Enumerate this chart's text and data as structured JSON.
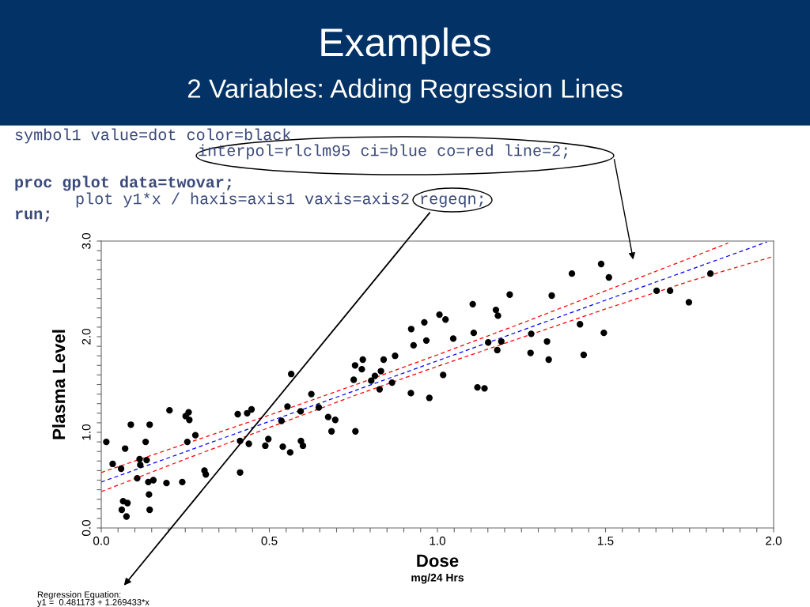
{
  "chart_data": {
    "type": "scatter",
    "title": "Examples",
    "subtitle": "2 Variables: Adding Regression Lines",
    "xlabel": "Dose",
    "ylabel": "Plasma Level",
    "annotations": [
      "symbol1 value=dot color=black",
      "interpol=rlclm95 ci=blue co=red line=2;",
      "proc gplot data=twovar;",
      "plot y1*x / haxis=axis1 vaxis=axis2 regeqn;",
      "run;",
      "mg/24 Hrs",
      "Regression Equation:\ny1 =  0.481173 + 1.269433*x"
    ],
    "xlim": [
      0,
      2
    ],
    "ylim": [
      0,
      3
    ],
    "xticks": [
      {
        "value": 0,
        "label": "0.0"
      },
      {
        "value": 0.05,
        "label": null
      },
      {
        "value": 0.1,
        "label": null
      },
      {
        "value": 0.15,
        "label": null
      },
      {
        "value": 0.2,
        "label": null
      },
      {
        "value": 0.25,
        "label": null
      },
      {
        "value": 0.3,
        "label": null
      },
      {
        "value": 0.35,
        "label": null
      },
      {
        "value": 0.4,
        "label": null
      },
      {
        "value": 0.45,
        "label": null
      },
      {
        "value": 0.5,
        "label": "0.5"
      },
      {
        "value": 0.55,
        "label": null
      },
      {
        "value": 0.6,
        "label": null
      },
      {
        "value": 0.65,
        "label": null
      },
      {
        "value": 0.7,
        "label": null
      },
      {
        "value": 0.75,
        "label": null
      },
      {
        "value": 0.8,
        "label": null
      },
      {
        "value": 0.85,
        "label": null
      },
      {
        "value": 0.9,
        "label": null
      },
      {
        "value": 0.95,
        "label": null
      },
      {
        "value": 1,
        "label": "1.0"
      },
      {
        "value": 1.05,
        "label": null
      },
      {
        "value": 1.1,
        "label": null
      },
      {
        "value": 1.15,
        "label": null
      },
      {
        "value": 1.2,
        "label": null
      },
      {
        "value": 1.25,
        "label": null
      },
      {
        "value": 1.3,
        "label": null
      },
      {
        "value": 1.35,
        "label": null
      },
      {
        "value": 1.4,
        "label": null
      },
      {
        "value": 1.45,
        "label": null
      },
      {
        "value": 1.5,
        "label": "1.5"
      },
      {
        "value": 1.55,
        "label": null
      },
      {
        "value": 1.6,
        "label": null
      },
      {
        "value": 1.65,
        "label": null
      },
      {
        "value": 1.7,
        "label": null
      },
      {
        "value": 1.75,
        "label": null
      },
      {
        "value": 1.8,
        "label": null
      },
      {
        "value": 1.85,
        "label": null
      },
      {
        "value": 1.9,
        "label": null
      },
      {
        "value": 1.95,
        "label": null
      },
      {
        "value": 2,
        "label": "2.0"
      }
    ],
    "yticks": [
      {
        "value": 0,
        "label": "0.0"
      },
      {
        "value": 0.1,
        "label": null
      },
      {
        "value": 0.2,
        "label": null
      },
      {
        "value": 0.3,
        "label": null
      },
      {
        "value": 0.4,
        "label": null
      },
      {
        "value": 0.5,
        "label": null
      },
      {
        "value": 0.6,
        "label": null
      },
      {
        "value": 0.7,
        "label": null
      },
      {
        "value": 0.8,
        "label": null
      },
      {
        "value": 0.9,
        "label": null
      },
      {
        "value": 1,
        "label": "1.0"
      },
      {
        "value": 1.1,
        "label": null
      },
      {
        "value": 1.2,
        "label": null
      },
      {
        "value": 1.3,
        "label": null
      },
      {
        "value": 1.4,
        "label": null
      },
      {
        "value": 1.5,
        "label": null
      },
      {
        "value": 1.6,
        "label": null
      },
      {
        "value": 1.7,
        "label": null
      },
      {
        "value": 1.8,
        "label": null
      },
      {
        "value": 1.9,
        "label": null
      },
      {
        "value": 2,
        "label": "2.0"
      },
      {
        "value": 2.1,
        "label": null
      },
      {
        "value": 2.2,
        "label": null
      },
      {
        "value": 2.3,
        "label": null
      },
      {
        "value": 2.4,
        "label": null
      },
      {
        "value": 2.5,
        "label": null
      },
      {
        "value": 2.6,
        "label": null
      },
      {
        "value": 2.7,
        "label": null
      },
      {
        "value": 2.8,
        "label": null
      },
      {
        "value": 2.9,
        "label": null
      },
      {
        "value": 3,
        "label": "3.0"
      }
    ],
    "grid": false,
    "legend": false,
    "series": [
      {
        "color": "#000000",
        "marker": "circle",
        "x": [
          0.015,
          0.034,
          0.059,
          0.071,
          0.061,
          0.065,
          0.078,
          0.075,
          0.088,
          0.107,
          0.114,
          0.116,
          0.132,
          0.135,
          0.14,
          0.155,
          0.142,
          0.144,
          0.144,
          0.194,
          0.203,
          0.241,
          0.251,
          0.26,
          0.262,
          0.256,
          0.28,
          0.307,
          0.311,
          0.406,
          0.413,
          0.413,
          0.434,
          0.439,
          0.447,
          0.488,
          0.497,
          0.54,
          0.536,
          0.554,
          0.562,
          0.565,
          0.593,
          0.594,
          0.6,
          0.625,
          0.647,
          0.675,
          0.685,
          0.696,
          0.751,
          0.755,
          0.756,
          0.775,
          0.778,
          0.803,
          0.814,
          0.828,
          0.832,
          0.84,
          0.865,
          0.874,
          0.921,
          0.922,
          0.929,
          0.961,
          0.967,
          0.976,
          1.006,
          1.017,
          1.024,
          1.047,
          1.105,
          1.108,
          1.119,
          1.14,
          1.151,
          1.174,
          1.18,
          1.178,
          1.19,
          1.215,
          1.277,
          1.279,
          1.326,
          1.331,
          1.34,
          1.4,
          1.424,
          1.435,
          1.487,
          1.495,
          1.51,
          1.652,
          1.692,
          1.748,
          1.812
        ],
        "values": [
          0.9,
          0.67,
          0.62,
          0.83,
          0.19,
          0.28,
          0.26,
          0.12,
          1.08,
          0.52,
          0.72,
          0.66,
          0.9,
          0.71,
          0.48,
          0.5,
          0.35,
          0.19,
          1.08,
          0.47,
          1.23,
          0.48,
          1.17,
          1.21,
          1.13,
          0.9,
          0.97,
          0.6,
          0.56,
          1.19,
          0.91,
          0.58,
          1.2,
          0.88,
          1.24,
          0.86,
          0.93,
          0.85,
          1.12,
          1.27,
          0.79,
          1.61,
          1.22,
          0.91,
          0.86,
          1.4,
          1.26,
          1.16,
          1.01,
          1.13,
          1.55,
          1.7,
          1.01,
          1.66,
          1.76,
          1.54,
          1.59,
          1.45,
          1.64,
          1.76,
          1.52,
          1.8,
          1.41,
          2.08,
          1.91,
          2.15,
          1.96,
          1.36,
          2.23,
          1.6,
          2.18,
          1.98,
          2.34,
          2.04,
          1.47,
          1.46,
          1.94,
          2.28,
          2.22,
          1.86,
          1.95,
          2.44,
          1.83,
          2.03,
          1.95,
          1.76,
          2.43,
          2.66,
          2.13,
          1.81,
          2.76,
          2.04,
          2.62,
          2.48,
          2.48,
          2.36,
          2.66
        ]
      },
      {
        "type": "line",
        "color": "#0000ff",
        "line_style": "dashed",
        "x": [
          0,
          1.98
        ],
        "values": [
          0.48,
          2.99
        ]
      },
      {
        "type": "line",
        "color": "#ff0000",
        "line_style": "dashed",
        "x": [
          0,
          0.25,
          0.5,
          0.75,
          1.0,
          1.25,
          1.5,
          1.75,
          1.865
        ],
        "values": [
          0.58,
          0.88,
          1.18,
          1.49,
          1.81,
          2.14,
          2.48,
          2.82,
          2.98
        ]
      },
      {
        "type": "line",
        "color": "#ff0000",
        "line_style": "dashed",
        "x": [
          0,
          0.25,
          0.5,
          0.75,
          1.0,
          1.25,
          1.5,
          1.75,
          2.0
        ],
        "values": [
          0.38,
          0.72,
          1.05,
          1.38,
          1.69,
          1.99,
          2.29,
          2.58,
          2.84
        ]
      }
    ]
  }
}
